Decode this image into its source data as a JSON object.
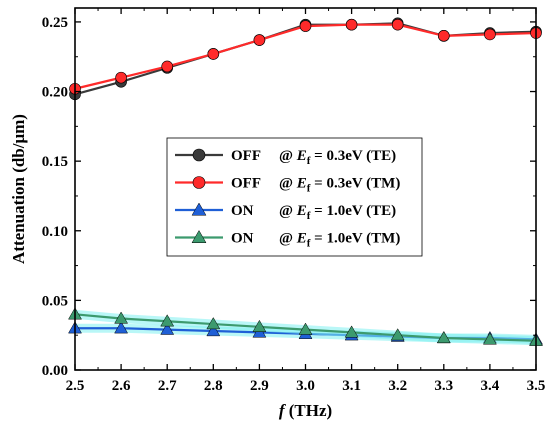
{
  "chart_data": {
    "type": "line",
    "xlabel_var": "f",
    "xlabel_unit": " (THz)",
    "ylabel": "Attenuation (db/μm)",
    "xlim": [
      2.5,
      3.5
    ],
    "ylim": [
      0.0,
      0.26
    ],
    "x_ticks": [
      "2.5",
      "2.6",
      "2.7",
      "2.8",
      "2.9",
      "3.0",
      "3.1",
      "3.2",
      "3.3",
      "3.4",
      "3.5"
    ],
    "y_ticks": [
      "0.00",
      "0.05",
      "0.10",
      "0.15",
      "0.20",
      "0.25"
    ],
    "grid": false,
    "legend_position": "center",
    "x": [
      2.5,
      2.6,
      2.7,
      2.8,
      2.9,
      3.0,
      3.1,
      3.2,
      3.3,
      3.4,
      3.5
    ],
    "series": [
      {
        "name_state": "OFF",
        "name_var": "E",
        "name_sub": "f",
        "name_rest": " = 0.3eV (TE)",
        "marker": "circle",
        "color": "#3a3a3a",
        "values": [
          0.198,
          0.207,
          0.217,
          0.227,
          0.237,
          0.248,
          0.248,
          0.249,
          0.24,
          0.242,
          0.243
        ]
      },
      {
        "name_state": "OFF",
        "name_var": "E",
        "name_sub": "f",
        "name_rest": " = 0.3eV (TM)",
        "marker": "circle",
        "color": "#ff2a2a",
        "values": [
          0.202,
          0.21,
          0.218,
          0.227,
          0.237,
          0.247,
          0.248,
          0.248,
          0.24,
          0.241,
          0.242
        ]
      },
      {
        "name_state": "ON",
        "name_var": "E",
        "name_sub": "f",
        "name_rest": " = 1.0eV (TE)",
        "marker": "triangle",
        "color": "#1f5fd6",
        "values": [
          0.03,
          0.03,
          0.029,
          0.028,
          0.027,
          0.026,
          0.025,
          0.024,
          0.023,
          0.023,
          0.022
        ]
      },
      {
        "name_state": "ON",
        "name_var": "E",
        "name_sub": "f",
        "name_rest": " = 1.0eV (TM)",
        "marker": "triangle",
        "color": "#3c9a6e",
        "values": [
          0.04,
          0.037,
          0.035,
          0.033,
          0.031,
          0.029,
          0.027,
          0.025,
          0.023,
          0.022,
          0.021
        ]
      }
    ]
  }
}
